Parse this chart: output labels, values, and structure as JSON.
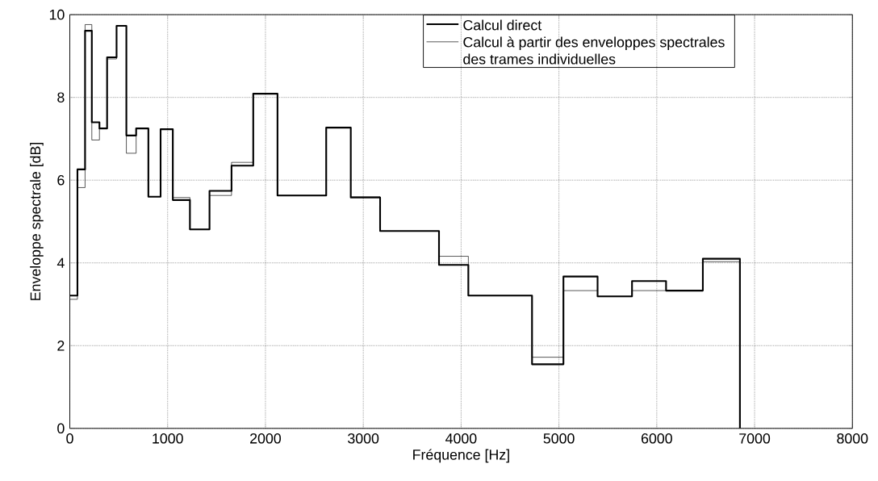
{
  "chart_data": {
    "type": "step",
    "xlabel": "Fréquence [Hz]",
    "ylabel": "Enveloppe spectrale [dB]",
    "x": [
      0,
      78,
      156,
      225,
      303,
      381,
      478,
      578,
      678,
      803,
      928,
      1053,
      1228,
      1428,
      1653,
      1875,
      2123,
      2621,
      2872,
      3172,
      3774,
      4074,
      4725,
      5046,
      5395,
      5747,
      6095,
      6471,
      6850
    ],
    "series": [
      {
        "name": "Calcul direct",
        "color": "#000000",
        "values": [
          3.21,
          6.26,
          9.61,
          7.4,
          7.25,
          8.97,
          9.73,
          7.08,
          7.25,
          5.6,
          7.23,
          5.52,
          4.81,
          5.74,
          6.35,
          8.09,
          5.63,
          7.27,
          5.58,
          4.77,
          3.95,
          3.21,
          1.55,
          3.67,
          3.19,
          3.56,
          3.33,
          4.1,
          0
        ]
      },
      {
        "name": "Calcul à partir des enveloppes spectrales des trames individuelles",
        "color": "#000000",
        "values": [
          3.12,
          5.82,
          9.76,
          6.97,
          7.25,
          8.93,
          9.73,
          6.65,
          7.25,
          5.6,
          7.23,
          5.58,
          4.81,
          5.63,
          6.43,
          8.09,
          5.63,
          7.27,
          5.6,
          4.77,
          4.16,
          3.21,
          1.72,
          3.33,
          3.19,
          3.33,
          3.33,
          4.03,
          0
        ]
      }
    ],
    "xlim": [
      0,
      8000
    ],
    "ylim": [
      0,
      10
    ],
    "xticks": [
      0,
      1000,
      2000,
      3000,
      4000,
      5000,
      6000,
      7000,
      8000
    ],
    "yticks": [
      0,
      2,
      4,
      6,
      8,
      10
    ],
    "grid": true,
    "legend": "top right"
  }
}
